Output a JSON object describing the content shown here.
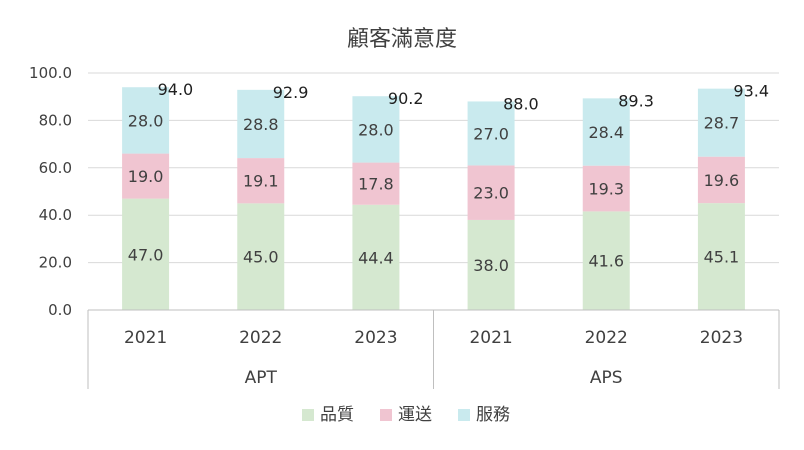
{
  "chart_data": {
    "type": "bar",
    "stacked": true,
    "title": "顧客滿意度",
    "xlabel": "",
    "ylabel": "",
    "ylim": [
      0,
      100
    ],
    "yticks": [
      "0.0",
      "20.0",
      "40.0",
      "60.0",
      "80.0",
      "100.0"
    ],
    "categories": [
      "2021",
      "2022",
      "2023",
      "2021",
      "2022",
      "2023"
    ],
    "groups": [
      {
        "label": "APT",
        "categories": [
          "2021",
          "2022",
          "2023"
        ]
      },
      {
        "label": "APS",
        "categories": [
          "2021",
          "2022",
          "2023"
        ]
      }
    ],
    "series": [
      {
        "name": "品質",
        "color": "#d5e8d0",
        "values": [
          47.0,
          45.0,
          44.4,
          38.0,
          41.6,
          45.1
        ],
        "labels": [
          "47.0",
          "45.0",
          "44.4",
          "38.0",
          "41.6",
          "45.1"
        ]
      },
      {
        "name": "運送",
        "color": "#f0c5d1",
        "values": [
          19.0,
          19.1,
          17.8,
          23.0,
          19.3,
          19.6
        ],
        "labels": [
          "19.0",
          "19.1",
          "17.8",
          "23.0",
          "19.3",
          "19.6"
        ]
      },
      {
        "name": "服務",
        "color": "#c9eaee",
        "values": [
          28.0,
          28.8,
          28.0,
          27.0,
          28.4,
          28.7
        ],
        "labels": [
          "28.0",
          "28.8",
          "28.0",
          "27.0",
          "28.4",
          "28.7"
        ]
      }
    ],
    "totals": [
      94.0,
      92.9,
      90.2,
      88.0,
      89.3,
      93.4
    ],
    "total_labels": [
      "94.0",
      "92.9",
      "90.2",
      "88.0",
      "89.3",
      "93.4"
    ],
    "grid": true,
    "legend": "bottom",
    "grid_color": "#d9d9d9",
    "axis_color": "#bfbfbf"
  }
}
